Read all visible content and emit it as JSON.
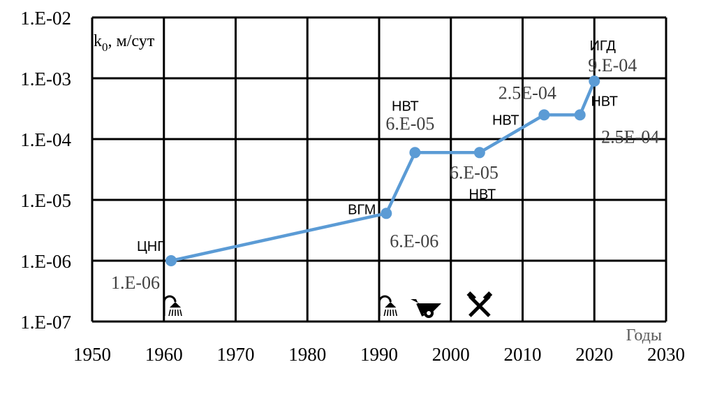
{
  "chart_data": {
    "type": "line",
    "title": "",
    "ylabel": "k0, м/сут",
    "ylabel_main": "k",
    "ylabel_sub": "0",
    "ylabel_rest": ", м/сут",
    "xlabel": "Годы",
    "xlim": [
      1950,
      2030
    ],
    "ylim": [
      1e-07,
      0.01
    ],
    "yscale": "log",
    "grid": true,
    "x_ticks": [
      "1950",
      "1960",
      "1970",
      "1980",
      "1990",
      "2000",
      "2010",
      "2020",
      "2030"
    ],
    "y_ticks": [
      "1.E-07",
      "1.E-06",
      "1.E-05",
      "1.E-04",
      "1.E-03",
      "1.E-02"
    ],
    "series_color": "#5b9bd5",
    "points": [
      {
        "x": 1961,
        "y": 1e-06,
        "value_label": "1.E-06",
        "method": "ЦНГ"
      },
      {
        "x": 1991,
        "y": 6e-06,
        "value_label": "6.E-06",
        "method": "ВГМ"
      },
      {
        "x": 1995,
        "y": 6e-05,
        "value_label": "6.E-05",
        "method": "НВТ"
      },
      {
        "x": 2004,
        "y": 6e-05,
        "value_label": "6.E-05",
        "method": "НВТ"
      },
      {
        "x": 2013,
        "y": 0.00025,
        "value_label": "2.5E-04",
        "method": "НВТ"
      },
      {
        "x": 2018,
        "y": 0.00025,
        "value_label": "2.5E-04",
        "method": "НВТ"
      },
      {
        "x": 2020,
        "y": 0.0009,
        "value_label": "9.E-04",
        "method": "ИГД"
      }
    ],
    "icons": [
      {
        "x": 1961,
        "name": "shower-icon"
      },
      {
        "x": 1991,
        "name": "shower-icon"
      },
      {
        "x": 1997.5,
        "name": "wheelbarrow-icon"
      },
      {
        "x": 2004,
        "name": "crossed-hammers-icon"
      }
    ]
  }
}
